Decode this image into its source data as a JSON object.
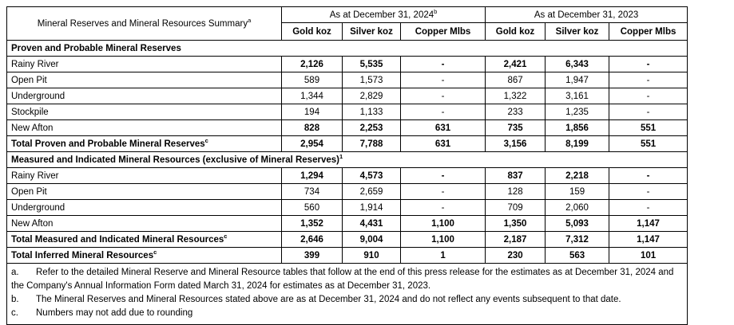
{
  "header": {
    "row_label": "Mineral Reserves and Mineral Resources Summary",
    "row_label_sup": "a",
    "col_groups": [
      {
        "label": "As at December 31, 2024",
        "sup": "b"
      },
      {
        "label": "As at December 31, 2023",
        "sup": ""
      }
    ],
    "sub_columns": [
      "Gold koz",
      "Silver koz",
      "Copper Mlbs",
      "Gold koz",
      "Silver koz",
      "Copper Mlbs"
    ]
  },
  "rows": [
    {
      "type": "section",
      "label": "Proven and Probable Mineral Reserves",
      "sup": ""
    },
    {
      "type": "data",
      "label": "Rainy River",
      "sup": "",
      "values": [
        "2,126",
        "5,535",
        "-",
        "2,421",
        "6,343",
        "-"
      ]
    },
    {
      "type": "data",
      "label": "Open Pit",
      "sup": "",
      "values": [
        "589",
        "1,573",
        "-",
        "867",
        "1,947",
        "-"
      ]
    },
    {
      "type": "data",
      "label": "Underground",
      "sup": "",
      "values": [
        "1,344",
        "2,829",
        "-",
        "1,322",
        "3,161",
        "-"
      ]
    },
    {
      "type": "data",
      "label": "Stockpile",
      "sup": "",
      "values": [
        "194",
        "1,133",
        "-",
        "233",
        "1,235",
        "-"
      ]
    },
    {
      "type": "data",
      "label": "New Afton",
      "sup": "",
      "values": [
        "828",
        "2,253",
        "631",
        "735",
        "1,856",
        "551"
      ]
    },
    {
      "type": "data",
      "label": "Total Proven and Probable Mineral Reserves",
      "sup": "c",
      "values": [
        "2,954",
        "7,788",
        "631",
        "3,156",
        "8,199",
        "551"
      ]
    },
    {
      "type": "section",
      "label": "Measured and Indicated Mineral Resources (exclusive of Mineral Reserves)",
      "sup": "1"
    },
    {
      "type": "data",
      "label": "Rainy River",
      "sup": "",
      "values": [
        "1,294",
        "4,573",
        "-",
        "837",
        "2,218",
        "-"
      ]
    },
    {
      "type": "data",
      "label": "Open Pit",
      "sup": "",
      "values": [
        "734",
        "2,659",
        "-",
        "128",
        "159",
        "-"
      ]
    },
    {
      "type": "data",
      "label": "Underground",
      "sup": "",
      "values": [
        "560",
        "1,914",
        "-",
        "709",
        "2,060",
        "-"
      ]
    },
    {
      "type": "data",
      "label": "New Afton",
      "sup": "",
      "values": [
        "1,352",
        "4,431",
        "1,100",
        "1,350",
        "5,093",
        "1,147"
      ]
    },
    {
      "type": "data",
      "label": "Total Measured and Indicated Mineral Resources",
      "sup": "c",
      "values": [
        "2,646",
        "9,004",
        "1,100",
        "2,187",
        "7,312",
        "1,147"
      ]
    },
    {
      "type": "data",
      "label": "Total Inferred Mineral Resources",
      "sup": "c",
      "values": [
        "399",
        "910",
        "1",
        "230",
        "563",
        "101"
      ]
    }
  ],
  "footnotes": [
    {
      "label": "a.",
      "text": "Refer to the detailed Mineral Reserve and Mineral Resource tables that follow at the end of this press release for the estimates as at December 31, 2024 and"
    },
    {
      "label": "",
      "text": "the Company's Annual Information Form dated March 31, 2024 for estimates as at December 31, 2023."
    },
    {
      "label": "b.",
      "text": "The Mineral Reserves and Mineral Resources stated above are as at December 31, 2024 and do not reflect any events subsequent to that date."
    },
    {
      "label": "c.",
      "text": "Numbers may not add due to rounding"
    }
  ],
  "colors": {
    "border": "#000000",
    "text": "#000000",
    "background": "#ffffff"
  }
}
